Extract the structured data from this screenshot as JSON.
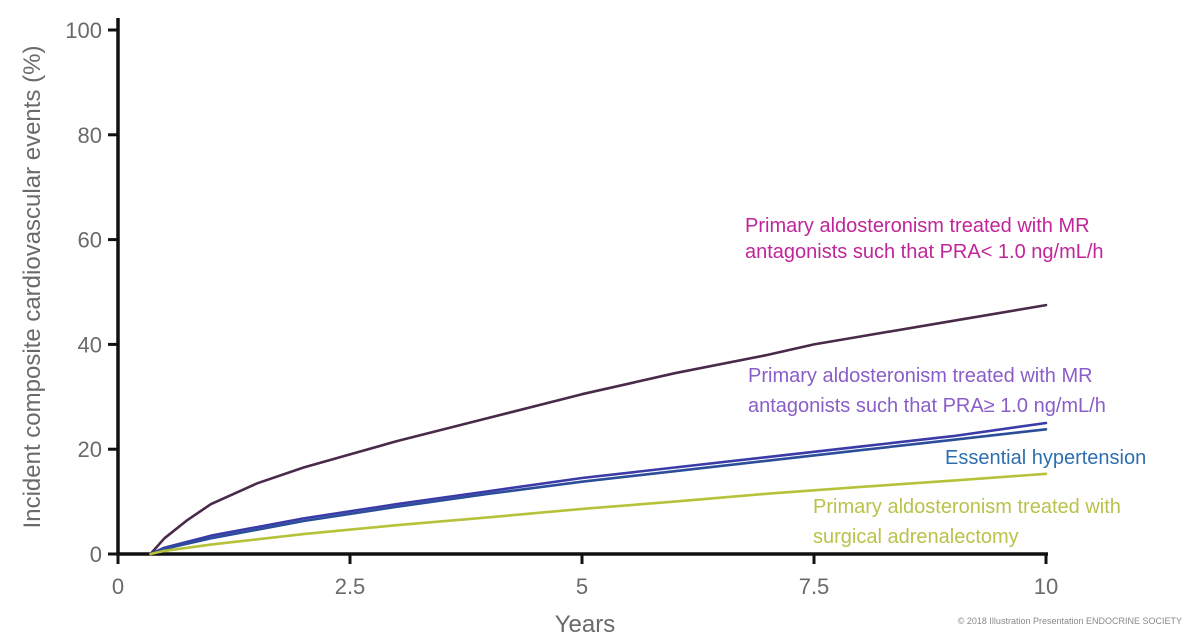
{
  "chart_data": {
    "type": "line",
    "xlabel": "Years",
    "ylabel": "Incident composite cardiovascular events (%)",
    "xlim": [
      0,
      10
    ],
    "ylim": [
      0,
      100
    ],
    "xticks": [
      "0",
      "2.5",
      "5",
      "7.5",
      "10"
    ],
    "yticks": [
      "0",
      "20",
      "40",
      "60",
      "80",
      "100"
    ],
    "grid": false,
    "legend": "inline labels at right",
    "series": [
      {
        "name": "Primary aldosteronism treated with MR antagonists such that PRA< 1.0 ng/mL/h",
        "label_lines": [
          "Primary aldosteronism treated with MR",
          "antagonists such that PRA< 1.0 ng/mL/h"
        ],
        "line_color": "#4a2a4a",
        "label_color": "#c0259a",
        "x": [
          0.35,
          0.5,
          0.75,
          1,
          1.5,
          2,
          2.5,
          3,
          4,
          5,
          6,
          7,
          7.5,
          8,
          9,
          10
        ],
        "y": [
          0,
          3,
          6.5,
          9.5,
          13.5,
          16.5,
          19,
          21.5,
          26,
          30.5,
          34.5,
          38,
          40,
          41.5,
          44.5,
          47.5
        ]
      },
      {
        "name": "Primary aldosteronism treated with MR antagonists such that PRA≥ 1.0 ng/mL/h",
        "label_lines": [
          "Primary aldosteronism treated with MR",
          "antagonists such that PRA≥ 1.0 ng/mL/h"
        ],
        "line_color": "#3a3aa8",
        "label_color": "#8a5ec8",
        "x": [
          0.35,
          0.5,
          1,
          2,
          3,
          4,
          5,
          6,
          7,
          8,
          9,
          10
        ],
        "y": [
          0,
          1.2,
          3.5,
          6.8,
          9.5,
          12,
          14.5,
          16.5,
          18.5,
          20.5,
          22.5,
          25
        ]
      },
      {
        "name": "Essential hypertension",
        "label_lines": [
          "Essential hypertension"
        ],
        "line_color": "#2b4d9a",
        "label_color": "#2e6fb0",
        "x": [
          0.35,
          0.5,
          1,
          2,
          3,
          4,
          5,
          6,
          7,
          8,
          9,
          10
        ],
        "y": [
          0,
          1,
          3,
          6.3,
          9,
          11.5,
          13.8,
          15.8,
          17.8,
          19.8,
          21.8,
          23.8
        ]
      },
      {
        "name": "Primary aldosteronism treated with surgical adrenalectomy",
        "label_lines": [
          "Primary aldosteronism treated with",
          "surgical adrenalectomy"
        ],
        "line_color": "#b6c23a",
        "label_color": "#b9c24a",
        "x": [
          0.35,
          0.5,
          1,
          2,
          3,
          4,
          5,
          6,
          7,
          8,
          9,
          10
        ],
        "y": [
          0,
          0.6,
          1.8,
          3.8,
          5.5,
          7,
          8.6,
          10,
          11.5,
          12.8,
          14,
          15.3
        ]
      }
    ]
  },
  "copyright": "© 2018 Illustration Presentation ENDOCRINE SOCIETY"
}
